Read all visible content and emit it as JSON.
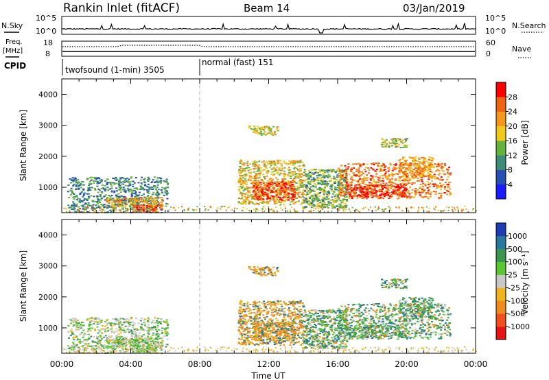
{
  "chart_data": {
    "type": "heatmap",
    "title": "Rankin Inlet (fitACF)",
    "beam": "Beam 14",
    "date": "03/Jan/2019",
    "xlabel": "Time UT",
    "x_ticks": [
      "00:00",
      "04:00",
      "08:00",
      "12:00",
      "16:00",
      "20:00",
      "00:00"
    ],
    "x_range_hours": [
      0,
      24
    ],
    "noise_panel": {
      "left_label": "N.Sky",
      "right_label": "N.Search",
      "left_ticks": [
        "10^5",
        "10^0"
      ],
      "right_ticks": [
        "10^5",
        "10^0"
      ]
    },
    "freq_panel": {
      "left_label_line1": "Freq.",
      "left_label_line2": "[MHz]",
      "left_ticks": [
        "18",
        "8"
      ],
      "right_label": "Nave",
      "right_ticks": [
        "60",
        "0"
      ]
    },
    "cpid": {
      "label": "CPID",
      "segments": [
        {
          "name": "twofsound (1-min) 3505",
          "start_h": 0,
          "end_h": 8.0
        },
        {
          "name": "normal (fast) 151",
          "start_h": 8.0,
          "end_h": 24
        }
      ]
    },
    "power_panel": {
      "ylabel": "Slant Range [km]",
      "ylim": [
        180,
        4500
      ],
      "y_ticks": [
        "1000",
        "2000",
        "3000",
        "4000"
      ],
      "colorbar_label": "Power [dB]",
      "colorbar_ticks": [
        "4",
        "8",
        "12",
        "16",
        "20",
        "24",
        "28"
      ],
      "colorbar_colors": [
        "#1a1aff",
        "#2850b4",
        "#3c8c78",
        "#64b43c",
        "#f0c81e",
        "#f5961e",
        "#f06414",
        "#ff0000"
      ]
    },
    "velocity_panel": {
      "ylabel": "Slant Range [km]",
      "ylim": [
        180,
        4500
      ],
      "y_ticks": [
        "1000",
        "2000",
        "3000",
        "4000"
      ],
      "colorbar_label": "Velocity [m s⁻¹]",
      "colorbar_ticks": [
        "1000",
        "500",
        "100",
        "25",
        "-25",
        "-100",
        "-500",
        "-1000"
      ],
      "colorbar_colors": [
        "#1e3cb4",
        "#2878a0",
        "#3c9650",
        "#5ac832",
        "#c8c8c8",
        "#f0b41e",
        "#f08c1e",
        "#f0501e",
        "#e61414"
      ]
    },
    "scatter_regions": [
      {
        "t0": 0.3,
        "t1": 6.1,
        "r0": 200,
        "r1": 1350,
        "power_dB": 10
      },
      {
        "t0": 2.5,
        "t1": 5.8,
        "r0": 400,
        "r1": 700,
        "power_dB": 20
      },
      {
        "t0": 4.0,
        "t1": 5.8,
        "r0": 200,
        "r1": 450,
        "power_dB": 28
      },
      {
        "t0": 10.2,
        "t1": 14.0,
        "r0": 450,
        "r1": 1900,
        "power_dB": 19
      },
      {
        "t0": 11.0,
        "t1": 13.5,
        "r0": 600,
        "r1": 1200,
        "power_dB": 27
      },
      {
        "t0": 10.8,
        "t1": 12.5,
        "r0": 2700,
        "r1": 3000,
        "power_dB": 18
      },
      {
        "t0": 14.0,
        "t1": 16.5,
        "r0": 350,
        "r1": 1600,
        "power_dB": 13
      },
      {
        "t0": 16.0,
        "t1": 22.5,
        "r0": 650,
        "r1": 1800,
        "power_dB": 24
      },
      {
        "t0": 16.5,
        "t1": 20.0,
        "r0": 700,
        "r1": 1100,
        "power_dB": 29
      },
      {
        "t0": 19.5,
        "t1": 21.5,
        "r0": 1300,
        "r1": 2000,
        "power_dB": 22
      },
      {
        "t0": 18.5,
        "t1": 20.0,
        "r0": 2300,
        "r1": 2600,
        "power_dB": 16
      }
    ]
  }
}
